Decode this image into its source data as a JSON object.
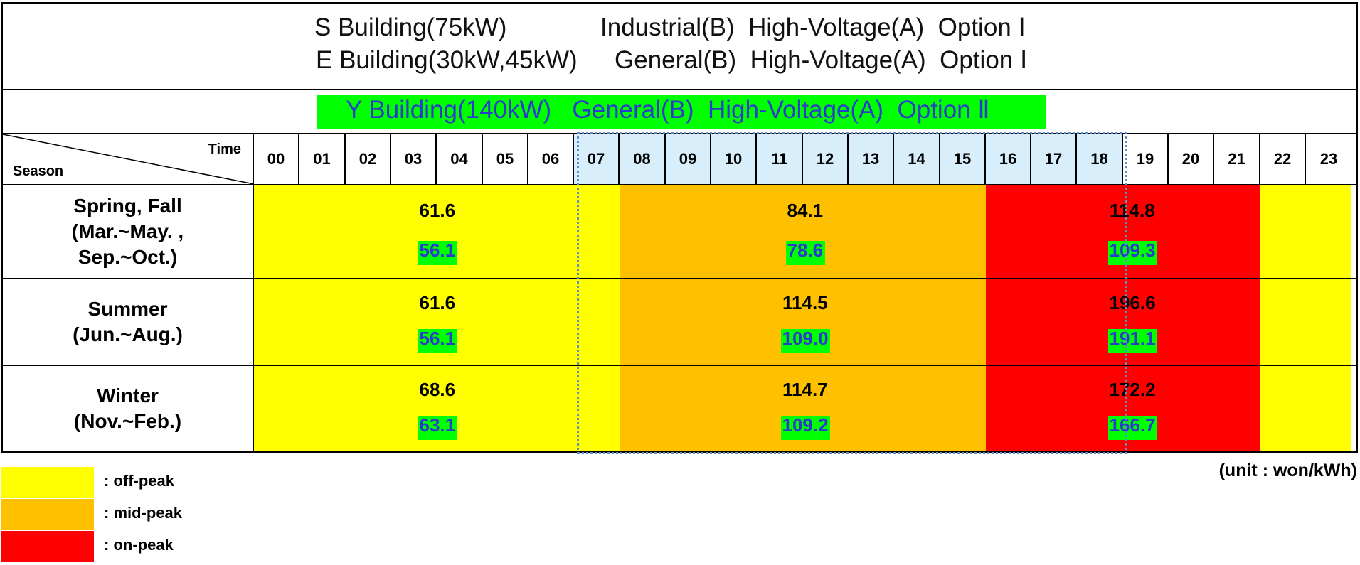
{
  "title": {
    "line1_building": "S Building(75kW)",
    "line1_tariff": "Industrial(B)  High-Voltage(A)  Option Ⅰ",
    "line2_building": "E Building(30kW,45kW)",
    "line2_tariff": "General(B)  High-Voltage(A)  Option Ⅰ",
    "line3": "Y Building(140kW)   General(B)  High-Voltage(A)  Option Ⅱ"
  },
  "header": {
    "time_label": "Time",
    "season_label": "Season"
  },
  "colors": {
    "off_peak": "#ffff00",
    "mid_peak": "#ffc000",
    "on_peak": "#ff0000",
    "option2_highlight": "#00ff00",
    "option2_text": "#2b3ccb",
    "hour_highlight": "#d8eefa",
    "dashed_box": "#5b8fd0"
  },
  "legend": [
    {
      "key": "off_peak",
      "label": ": off-peak"
    },
    {
      "key": "mid_peak",
      "label": ": mid-peak"
    },
    {
      "key": "on_peak",
      "label": ": on-peak"
    }
  ],
  "unit": "(unit : won/kWh)",
  "chart_data": {
    "type": "table",
    "hours": [
      "00",
      "01",
      "02",
      "03",
      "04",
      "05",
      "06",
      "07",
      "08",
      "09",
      "10",
      "11",
      "12",
      "13",
      "14",
      "15",
      "16",
      "17",
      "18",
      "19",
      "20",
      "21",
      "22",
      "23"
    ],
    "highlighted_hours": [
      "07",
      "08",
      "09",
      "10",
      "11",
      "12",
      "13",
      "14",
      "15",
      "16",
      "17",
      "18"
    ],
    "periods": {
      "off_peak": {
        "hours": [
          "00",
          "01",
          "02",
          "03",
          "04",
          "05",
          "06",
          "07",
          "22",
          "23"
        ]
      },
      "mid_peak": {
        "hours": [
          "08",
          "09",
          "10",
          "11",
          "12",
          "13",
          "14",
          "15"
        ]
      },
      "on_peak": {
        "hours": [
          "16",
          "17",
          "18",
          "19",
          "20",
          "21"
        ]
      }
    },
    "seasons": [
      {
        "label_lines": [
          "Spring, Fall",
          "(Mar.~May. ,",
          "Sep.~Oct.)"
        ],
        "option1": {
          "off_peak": "61.6",
          "mid_peak": "84.1",
          "on_peak": "114.8"
        },
        "option2": {
          "off_peak": "56.1",
          "mid_peak": "78.6",
          "on_peak": "109.3"
        }
      },
      {
        "label_lines": [
          "Summer",
          "(Jun.~Aug.)"
        ],
        "option1": {
          "off_peak": "61.6",
          "mid_peak": "114.5",
          "on_peak": "196.6"
        },
        "option2": {
          "off_peak": "56.1",
          "mid_peak": "109.0",
          "on_peak": "191.1"
        }
      },
      {
        "label_lines": [
          "Winter",
          "(Nov.~Feb.)"
        ],
        "option1": {
          "off_peak": "68.6",
          "mid_peak": "114.7",
          "on_peak": "172.2"
        },
        "option2": {
          "off_peak": "63.1",
          "mid_peak": "109.2",
          "on_peak": "166.7"
        }
      }
    ]
  }
}
